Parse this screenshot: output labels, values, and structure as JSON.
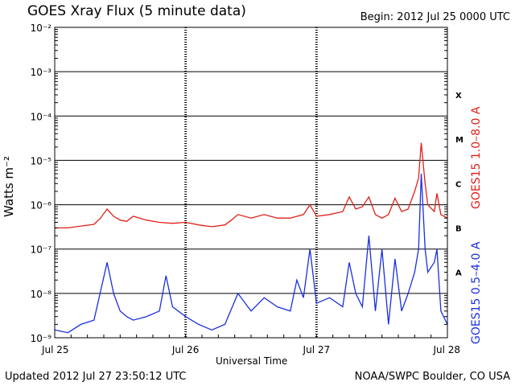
{
  "header": {
    "title": "GOES Xray Flux (5 minute data)",
    "begin": "Begin:  2012 Jul 25 0000 UTC"
  },
  "footer": {
    "updated": "Updated 2012 Jul 27 23:50:12 UTC",
    "credit": "NOAA/SWPC Boulder, CO USA"
  },
  "chart_data": {
    "type": "line",
    "title": "GOES Xray Flux (5 minute data)",
    "xlabel": "Universal Time",
    "ylabel": "Watts m⁻²",
    "y_scale": "log",
    "ylim": [
      1e-09,
      0.01
    ],
    "xlim_days": [
      0,
      3
    ],
    "y_ticks": [
      {
        "value": 0.01,
        "label": "10⁻²"
      },
      {
        "value": 0.001,
        "label": "10⁻³"
      },
      {
        "value": 0.0001,
        "label": "10⁻⁴"
      },
      {
        "value": 1e-05,
        "label": "10⁻⁵"
      },
      {
        "value": 1e-06,
        "label": "10⁻⁶"
      },
      {
        "value": 1e-07,
        "label": "10⁻⁷"
      },
      {
        "value": 1e-08,
        "label": "10⁻⁸"
      },
      {
        "value": 1e-09,
        "label": "10⁻⁹"
      }
    ],
    "x_ticks": [
      {
        "value": 0,
        "label": "Jul 25"
      },
      {
        "value": 1,
        "label": "Jul 26"
      },
      {
        "value": 2,
        "label": "Jul 27"
      },
      {
        "value": 3,
        "label": "Jul 28"
      }
    ],
    "flare_classes": [
      {
        "label": "X",
        "value": 0.0003
      },
      {
        "label": "M",
        "value": 3e-05
      },
      {
        "label": "C",
        "value": 3e-06
      },
      {
        "label": "B",
        "value": 3e-07
      },
      {
        "label": "A",
        "value": 3e-08
      }
    ],
    "grid": true,
    "series": [
      {
        "name": "GOES15 1.0–8.0 A",
        "color": "#e0201a",
        "x": [
          0.0,
          0.1,
          0.2,
          0.3,
          0.35,
          0.4,
          0.45,
          0.5,
          0.55,
          0.6,
          0.7,
          0.8,
          0.9,
          1.0,
          1.1,
          1.2,
          1.3,
          1.35,
          1.4,
          1.5,
          1.6,
          1.7,
          1.8,
          1.9,
          1.95,
          2.0,
          2.1,
          2.2,
          2.25,
          2.3,
          2.35,
          2.4,
          2.45,
          2.5,
          2.55,
          2.6,
          2.65,
          2.7,
          2.75,
          2.78,
          2.8,
          2.83,
          2.85,
          2.9,
          2.92,
          2.95,
          3.0
        ],
        "values": [
          3e-07,
          3e-07,
          3.3e-07,
          3.6e-07,
          5e-07,
          8e-07,
          5.5e-07,
          4.5e-07,
          4.2e-07,
          5.5e-07,
          4.5e-07,
          4e-07,
          3.8e-07,
          4e-07,
          3.5e-07,
          3.2e-07,
          3.5e-07,
          4.5e-07,
          6e-07,
          5e-07,
          6e-07,
          5e-07,
          5e-07,
          6e-07,
          1e-06,
          5.5e-07,
          6e-07,
          7e-07,
          1.5e-06,
          8e-07,
          9e-07,
          1.5e-06,
          6e-07,
          5e-07,
          6e-07,
          1.4e-06,
          7e-07,
          8e-07,
          2e-06,
          4e-06,
          2.5e-05,
          3e-06,
          1e-06,
          7e-07,
          1.8e-06,
          6e-07,
          5e-07
        ]
      },
      {
        "name": "GOES15 0.5–4.0 A",
        "color": "#1a2fe0",
        "x": [
          0.0,
          0.1,
          0.2,
          0.3,
          0.4,
          0.45,
          0.5,
          0.55,
          0.6,
          0.7,
          0.8,
          0.85,
          0.9,
          1.0,
          1.1,
          1.2,
          1.3,
          1.4,
          1.5,
          1.6,
          1.7,
          1.8,
          1.85,
          1.9,
          1.95,
          2.0,
          2.1,
          2.2,
          2.25,
          2.3,
          2.35,
          2.4,
          2.45,
          2.5,
          2.55,
          2.6,
          2.65,
          2.7,
          2.75,
          2.78,
          2.8,
          2.83,
          2.85,
          2.9,
          2.92,
          2.95,
          3.0
        ],
        "values": [
          1.5e-09,
          1.3e-09,
          2e-09,
          2.5e-09,
          5e-08,
          1e-08,
          4e-09,
          3e-09,
          2.5e-09,
          3e-09,
          4e-09,
          2.5e-08,
          5e-09,
          3e-09,
          2e-09,
          1.5e-09,
          2e-09,
          1e-08,
          4e-09,
          8e-09,
          5e-09,
          4e-09,
          2e-08,
          8e-09,
          1e-07,
          6e-09,
          8e-09,
          5e-09,
          5e-08,
          1e-08,
          5e-09,
          2e-07,
          4e-09,
          1e-07,
          2e-09,
          6e-08,
          4e-09,
          1e-08,
          3e-08,
          1e-07,
          5e-06,
          1e-07,
          3e-08,
          5e-08,
          1e-07,
          4e-09,
          2e-09
        ]
      }
    ]
  }
}
